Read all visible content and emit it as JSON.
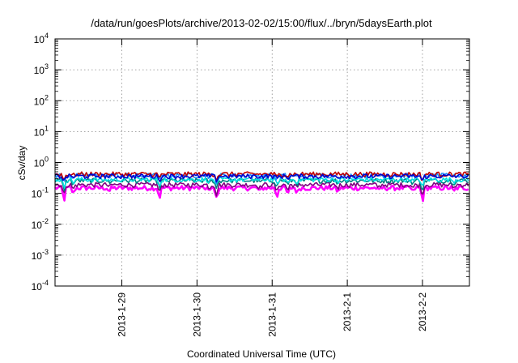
{
  "chart_data": {
    "type": "line",
    "title": "/data/run/goesPlots/archive/2013-02-02/15:00/flux/../bryn/5daysEarth.plot",
    "xlabel": "Coordinated Universal Time (UTC)",
    "ylabel": "cSv/day",
    "y_scale": "log",
    "ylim": [
      0.0001,
      10000
    ],
    "xlim": [
      "2013-01-28 02:40",
      "2013-02-02 15:00"
    ],
    "grid": true,
    "x_ticks": [
      {
        "date": "2013-01-29",
        "label": "2013-1-29"
      },
      {
        "date": "2013-01-30",
        "label": "2013-1-30"
      },
      {
        "date": "2013-01-31",
        "label": "2013-1-31"
      },
      {
        "date": "2013-02-01",
        "label": "2013-2-1"
      },
      {
        "date": "2013-02-02",
        "label": "2013-2-2"
      }
    ],
    "y_ticks": [
      {
        "value": 0.0001,
        "base": "10",
        "exp": "-4"
      },
      {
        "value": 0.001,
        "base": "10",
        "exp": "-3"
      },
      {
        "value": 0.01,
        "base": "10",
        "exp": "-2"
      },
      {
        "value": 0.1,
        "base": "10",
        "exp": "-1"
      },
      {
        "value": 1,
        "base": "10",
        "exp": "0"
      },
      {
        "value": 10,
        "base": "10",
        "exp": "1"
      },
      {
        "value": 100,
        "base": "10",
        "exp": "2"
      },
      {
        "value": 1000,
        "base": "10",
        "exp": "3"
      },
      {
        "value": 10000,
        "base": "10",
        "exp": "4"
      }
    ],
    "series": [
      {
        "color": "#ff00ff",
        "base": 0.15
      },
      {
        "color": "#800080",
        "base": 0.19
      },
      {
        "color": "#008080",
        "base": 0.26
      },
      {
        "color": "#00e0e0",
        "base": 0.28
      },
      {
        "color": "#1e90ff",
        "base": 0.38
      },
      {
        "color": "#c00000",
        "base": 0.42
      },
      {
        "color": "#0000cc",
        "base": 0.36
      }
    ],
    "dips": [
      {
        "date": "2013-01-28 05:30",
        "factor": 0.28
      },
      {
        "date": "2013-01-28 08:30",
        "factor": 0.6
      },
      {
        "date": "2013-01-28 20:00",
        "factor": 0.75
      },
      {
        "date": "2013-01-29 12:00",
        "factor": 0.4
      },
      {
        "date": "2013-01-30 04:00",
        "factor": 0.7
      },
      {
        "date": "2013-01-30 06:15",
        "factor": 0.38
      },
      {
        "date": "2013-01-30 20:00",
        "factor": 0.7
      },
      {
        "date": "2013-01-31 01:30",
        "factor": 0.45
      },
      {
        "date": "2013-01-31 05:00",
        "factor": 0.55
      },
      {
        "date": "2013-01-31 08:00",
        "factor": 0.65
      },
      {
        "date": "2013-01-31 21:00",
        "factor": 0.7
      },
      {
        "date": "2013-02-01 10:00",
        "factor": 0.75
      },
      {
        "date": "2013-02-01 21:00",
        "factor": 0.7
      },
      {
        "date": "2013-02-02 00:00",
        "factor": 0.28
      },
      {
        "date": "2013-02-02 10:00",
        "factor": 0.7
      }
    ]
  }
}
